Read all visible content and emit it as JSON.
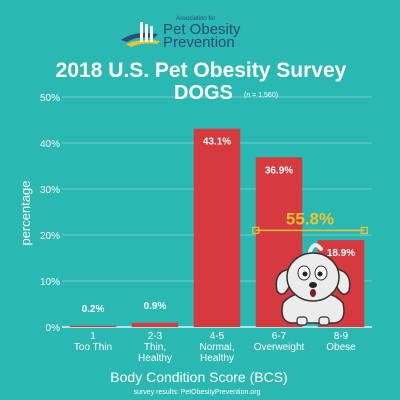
{
  "header": {
    "org_small": "Association for",
    "org_name_1": "Pet Obesity",
    "org_name_2": "Prevention"
  },
  "chart_data": {
    "type": "bar",
    "title": "2018 U.S. Pet Obesity Survey",
    "subtitle": "DOGS",
    "sample_note": "(n = 1,560)",
    "xlabel": "Body Condition Score (BCS)",
    "ylabel": "percentage",
    "ylim": [
      0,
      50
    ],
    "yticks": [
      0,
      10,
      20,
      30,
      40,
      50
    ],
    "ytick_labels": [
      "0%",
      "10%",
      "20%",
      "30%",
      "40%",
      "50%"
    ],
    "grid": true,
    "categories": [
      [
        "1",
        "Too Thin"
      ],
      [
        "2-3",
        "Thin,",
        "Healthy"
      ],
      [
        "4-5",
        "Normal,",
        "Healthy"
      ],
      [
        "6-7",
        "Overweight"
      ],
      [
        "8-9",
        "Obese"
      ]
    ],
    "values": [
      0.2,
      0.9,
      43.1,
      36.9,
      18.9
    ],
    "value_labels": [
      "0.2%",
      "0.9%",
      "43.1%",
      "36.9%",
      "18.9%"
    ],
    "annotation": {
      "text": "55.8%",
      "spans_categories": [
        3,
        4
      ],
      "level": 21
    },
    "bar_color": "#d63a3f",
    "annotation_color": "#f2c12e",
    "source": "survey results: PetObesityPrevention.org"
  }
}
